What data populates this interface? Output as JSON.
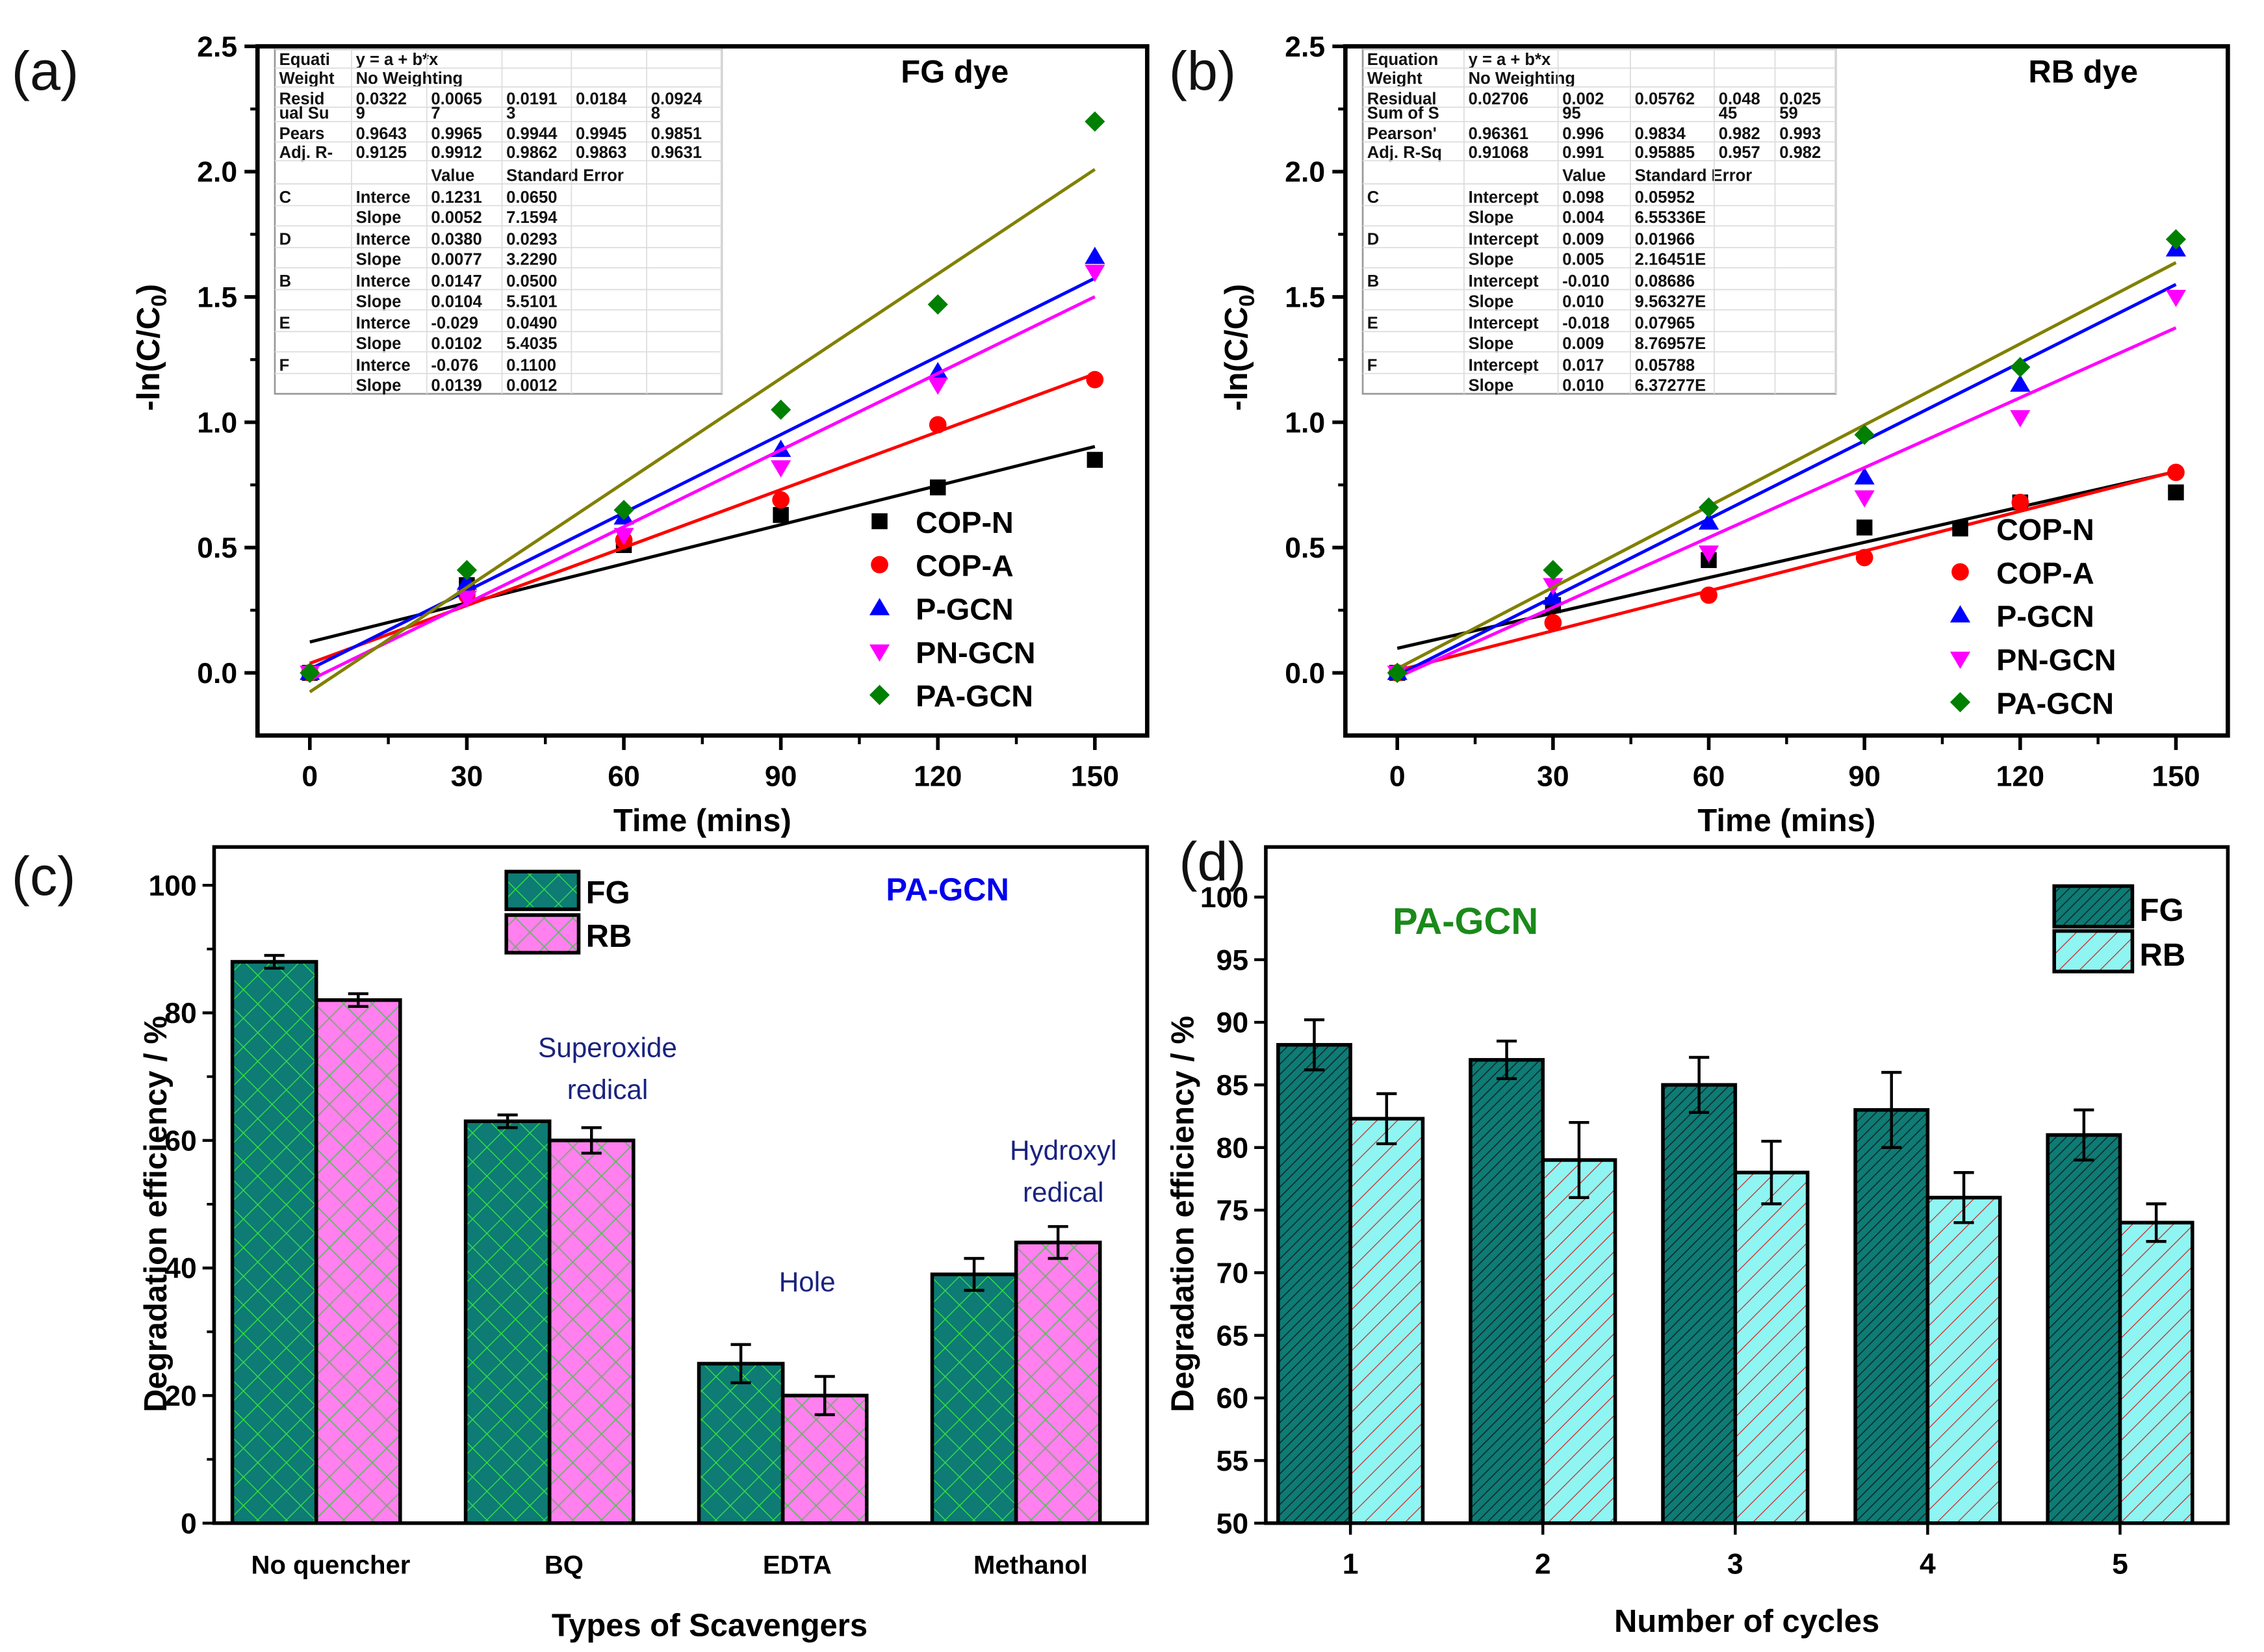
{
  "chart_data": [
    {
      "id": "a",
      "panel_label": "(a)",
      "type": "scatter",
      "title": "FG dye",
      "xlabel": "Time (mins)",
      "ylabel": "-ln(C/C0)",
      "ylabel_main": "-ln(C/C",
      "ylabel_sub": "0",
      "ylabel_close": ")",
      "xlim": [
        -10,
        160
      ],
      "ylim": [
        -0.25,
        2.5
      ],
      "xticks": [
        0,
        30,
        60,
        90,
        120,
        150
      ],
      "xtick_labels": [
        "0",
        "30",
        "60",
        "90",
        "120",
        "150"
      ],
      "yticks": [
        0.0,
        0.5,
        1.0,
        1.5,
        2.0,
        2.5
      ],
      "ytick_labels": [
        "0.0",
        "0.5",
        "1.0",
        "1.5",
        "2.0",
        "2.5"
      ],
      "legend_position": "bottom-right",
      "x": [
        0,
        30,
        60,
        90,
        120,
        150
      ],
      "series": [
        {
          "name": "COP-N",
          "marker": "square",
          "color": "#000000",
          "line_color": "#000000",
          "values": [
            0.0,
            0.35,
            0.51,
            0.63,
            0.74,
            0.85
          ],
          "fit": {
            "intercept": 0.1231,
            "slope": 0.0052
          }
        },
        {
          "name": "COP-A",
          "marker": "circle",
          "color": "#ff0000",
          "line_color": "#ff0000",
          "values": [
            0.0,
            0.31,
            0.53,
            0.69,
            0.99,
            1.17
          ],
          "fit": {
            "intercept": 0.038,
            "slope": 0.0077
          }
        },
        {
          "name": "P-GCN",
          "marker": "triangle-up",
          "color": "#0000ff",
          "line_color": "#0000ff",
          "values": [
            0.0,
            0.36,
            0.62,
            0.89,
            1.2,
            1.66
          ],
          "fit": {
            "intercept": 0.0147,
            "slope": 0.0104
          }
        },
        {
          "name": "PN-GCN",
          "marker": "triangle-down",
          "color": "#ff00ff",
          "line_color": "#ff00ff",
          "values": [
            0.0,
            0.3,
            0.55,
            0.82,
            1.15,
            1.6
          ],
          "fit": {
            "intercept": -0.029,
            "slope": 0.0102
          }
        },
        {
          "name": "PA-GCN",
          "marker": "diamond",
          "color": "#008000",
          "line_color": "#808000",
          "values": [
            0.0,
            0.41,
            0.65,
            1.05,
            1.47,
            2.2
          ],
          "fit": {
            "intercept": -0.076,
            "slope": 0.0139
          }
        }
      ],
      "fit_table": {
        "rows": [
          [
            "Equati",
            "y = a + b*x",
            "",
            "",
            "",
            ""
          ],
          [
            "Weight",
            "No Weighting",
            "",
            "",
            "",
            ""
          ],
          [
            "Resid",
            "0.0322",
            "0.0065",
            "0.0191",
            "0.0184",
            "0.0924"
          ],
          [
            "ual Su",
            "9",
            "7",
            "3",
            "",
            "8"
          ],
          [
            "Pears",
            "0.9643",
            "0.9965",
            "0.9944",
            "0.9945",
            "0.9851"
          ],
          [
            "Adj. R-",
            "0.9125",
            "0.9912",
            "0.9862",
            "0.9863",
            "0.9631"
          ],
          [
            "",
            "",
            "Value",
            "Standard Error",
            "",
            ""
          ],
          [
            "C",
            "Interce",
            "0.1231",
            "0.0650",
            "",
            ""
          ],
          [
            "",
            "Slope",
            "0.0052",
            "7.1594",
            "",
            ""
          ],
          [
            "D",
            "Interce",
            "0.0380",
            "0.0293",
            "",
            ""
          ],
          [
            "",
            "Slope",
            "0.0077",
            "3.2290",
            "",
            ""
          ],
          [
            "B",
            "Interce",
            "0.0147",
            "0.0500",
            "",
            ""
          ],
          [
            "",
            "Slope",
            "0.0104",
            "5.5101",
            "",
            ""
          ],
          [
            "E",
            "Interce",
            "-0.029",
            "0.0490",
            "",
            ""
          ],
          [
            "",
            "Slope",
            "0.0102",
            "5.4035",
            "",
            ""
          ],
          [
            "F",
            "Interce",
            "-0.076",
            "0.1100",
            "",
            ""
          ],
          [
            "",
            "Slope",
            "0.0139",
            "0.0012",
            "",
            ""
          ]
        ]
      }
    },
    {
      "id": "b",
      "panel_label": "(b)",
      "type": "scatter",
      "title": "RB dye",
      "xlabel": "Time (mins)",
      "ylabel": "-ln(C/C0)",
      "ylabel_main": "-ln(C/C",
      "ylabel_sub": "0",
      "ylabel_close": ")",
      "xlim": [
        -10,
        160
      ],
      "ylim": [
        -0.25,
        2.5
      ],
      "xticks": [
        0,
        30,
        60,
        90,
        120,
        150
      ],
      "xtick_labels": [
        "0",
        "30",
        "60",
        "90",
        "120",
        "150"
      ],
      "yticks": [
        0.0,
        0.5,
        1.0,
        1.5,
        2.0,
        2.5
      ],
      "ytick_labels": [
        "0.0",
        "0.5",
        "1.0",
        "1.5",
        "2.0",
        "2.5"
      ],
      "legend_position": "bottom-right",
      "x": [
        0,
        30,
        60,
        90,
        120,
        150
      ],
      "series": [
        {
          "name": "COP-N",
          "marker": "square",
          "color": "#000000",
          "line_color": "#000000",
          "values": [
            0.0,
            0.27,
            0.45,
            0.58,
            0.68,
            0.72
          ],
          "fit": {
            "intercept": 0.098,
            "slope": 0.0047
          }
        },
        {
          "name": "COP-A",
          "marker": "circle",
          "color": "#ff0000",
          "line_color": "#ff0000",
          "values": [
            0.0,
            0.2,
            0.31,
            0.46,
            0.68,
            0.8
          ],
          "fit": {
            "intercept": 0.009,
            "slope": 0.0053
          }
        },
        {
          "name": "P-GCN",
          "marker": "triangle-up",
          "color": "#0000ff",
          "line_color": "#0000ff",
          "values": [
            0.0,
            0.3,
            0.6,
            0.78,
            1.15,
            1.69
          ],
          "fit": {
            "intercept": -0.01,
            "slope": 0.0104
          }
        },
        {
          "name": "PN-GCN",
          "marker": "triangle-down",
          "color": "#ff00ff",
          "line_color": "#ff00ff",
          "values": [
            0.0,
            0.35,
            0.48,
            0.7,
            1.02,
            1.5
          ],
          "fit": {
            "intercept": -0.018,
            "slope": 0.0093
          }
        },
        {
          "name": "PA-GCN",
          "marker": "diamond",
          "color": "#008000",
          "line_color": "#808000",
          "values": [
            0.0,
            0.41,
            0.66,
            0.95,
            1.22,
            1.73
          ],
          "fit": {
            "intercept": 0.017,
            "slope": 0.0108
          }
        }
      ],
      "fit_table": {
        "rows": [
          [
            "Equation",
            "y = a + b*x",
            "",
            "",
            "",
            ""
          ],
          [
            "Weight",
            "No Weighting",
            "",
            "",
            "",
            ""
          ],
          [
            "Residual",
            "0.02706",
            "0.002",
            "0.05762",
            "0.048",
            "0.025"
          ],
          [
            "Sum of S",
            "",
            "95",
            "",
            "45",
            "59"
          ],
          [
            "Pearson'",
            "0.96361",
            "0.996",
            "0.9834",
            "0.982",
            "0.993"
          ],
          [
            "Adj. R-Sq",
            "0.91068",
            "0.991",
            "0.95885",
            "0.957",
            "0.982"
          ],
          [
            "",
            "",
            "Value",
            "Standard Error",
            "",
            ""
          ],
          [
            "C",
            "Intercept",
            "0.098",
            "0.05952",
            "",
            ""
          ],
          [
            "",
            "Slope",
            "0.004",
            "6.55336E",
            "",
            ""
          ],
          [
            "D",
            "Intercept",
            "0.009",
            "0.01966",
            "",
            ""
          ],
          [
            "",
            "Slope",
            "0.005",
            "2.16451E",
            "",
            ""
          ],
          [
            "B",
            "Intercept",
            "-0.010",
            "0.08686",
            "",
            ""
          ],
          [
            "",
            "Slope",
            "0.010",
            "9.56327E",
            "",
            ""
          ],
          [
            "E",
            "Intercept",
            "-0.018",
            "0.07965",
            "",
            ""
          ],
          [
            "",
            "Slope",
            "0.009",
            "8.76957E",
            "",
            ""
          ],
          [
            "F",
            "Intercept",
            "0.017",
            "0.05788",
            "",
            ""
          ],
          [
            "",
            "Slope",
            "0.010",
            "6.37277E",
            "",
            ""
          ]
        ]
      }
    },
    {
      "id": "c",
      "panel_label": "(c)",
      "type": "bar",
      "title": "PA-GCN",
      "title_color": "#0000ee",
      "xlabel": "Types of Scavengers",
      "ylabel": "Degradation efficiency / %",
      "ylim": [
        0,
        106
      ],
      "yticks": [
        0,
        20,
        40,
        60,
        80,
        100
      ],
      "ytick_labels": [
        "0",
        "20",
        "40",
        "60",
        "80",
        "100"
      ],
      "categories": [
        "No quencher",
        "BQ",
        "EDTA",
        "Methanol"
      ],
      "legend_position": "top-center",
      "series": [
        {
          "name": "FG",
          "fill": "#0e7b74",
          "hatch": "crosshatch",
          "hatch_color": "#33dd44",
          "values": [
            88,
            63,
            25,
            39
          ],
          "errors": [
            1,
            1,
            3,
            2.5
          ]
        },
        {
          "name": "RB",
          "fill": "#ff80ee",
          "hatch": "crosshatch",
          "hatch_color": "#55bb55",
          "values": [
            82,
            60,
            20,
            44
          ],
          "errors": [
            1,
            2,
            3,
            2.5
          ]
        }
      ],
      "annotations": [
        {
          "text": "Superoxide",
          "category": "BQ",
          "line": 1
        },
        {
          "text": "redical",
          "category": "BQ",
          "line": 2
        },
        {
          "text": "Hole",
          "category": "EDTA",
          "line": 1
        },
        {
          "text": "Hydroxyl",
          "category": "Methanol",
          "line": 1
        },
        {
          "text": "redical",
          "category": "Methanol",
          "line": 2
        }
      ],
      "annotation_color": "#1a237e"
    },
    {
      "id": "d",
      "panel_label": "(d)",
      "type": "bar",
      "title": "PA-GCN",
      "title_color": "#1a8a1a",
      "xlabel": "Number of cycles",
      "ylabel": "Degradation efficiency / %",
      "ylim": [
        50,
        104
      ],
      "yticks": [
        50,
        55,
        60,
        65,
        70,
        75,
        80,
        85,
        90,
        95,
        100
      ],
      "ytick_labels": [
        "50",
        "55",
        "60",
        "65",
        "70",
        "75",
        "80",
        "85",
        "90",
        "95",
        "100"
      ],
      "categories": [
        "1",
        "2",
        "3",
        "4",
        "5"
      ],
      "legend_position": "top-right",
      "series": [
        {
          "name": "FG",
          "fill": "#0e7b74",
          "hatch": "diagonal",
          "hatch_color": "#0a2a2a",
          "values": [
            88.2,
            87,
            85,
            83,
            81
          ],
          "errors": [
            2,
            1.5,
            2.2,
            3,
            2
          ]
        },
        {
          "name": "RB",
          "fill": "#8ff5f2",
          "hatch": "diagonal",
          "hatch_color": "#cc2222",
          "values": [
            82.3,
            79,
            78,
            76,
            74
          ],
          "errors": [
            2,
            3,
            2.5,
            2,
            1.5
          ]
        }
      ]
    }
  ]
}
